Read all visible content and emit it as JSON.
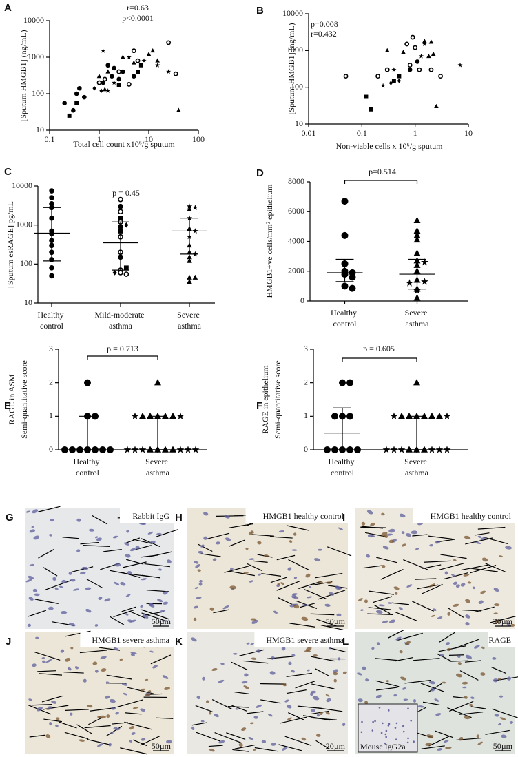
{
  "chart_data": [
    {
      "type": "scatter",
      "panel": "A",
      "xscale": "log",
      "yscale": "log",
      "xlim": [
        0.1,
        100
      ],
      "xticks": [
        0.1,
        1,
        10,
        100
      ],
      "ylim": [
        10,
        10000
      ],
      "yticks": [
        10,
        100,
        1000,
        10000
      ],
      "xlabel": "Total cell count x10⁶/g sputum",
      "ylabel": "[Sputum HMGB1] (ng/mL)",
      "annotations": [
        "r=0.63",
        "p<0.0001"
      ],
      "series": [
        {
          "marker": "circle",
          "x": [
            0.2,
            0.35,
            0.4,
            0.5,
            1.5,
            2,
            1.8,
            2.5,
            3,
            5,
            1.2,
            0.3
          ],
          "values": [
            55,
            100,
            140,
            80,
            600,
            500,
            300,
            250,
            400,
            300,
            200,
            35
          ]
        },
        {
          "marker": "square",
          "x": [
            0.25,
            0.35,
            2.5,
            7,
            6
          ],
          "values": [
            25,
            55,
            170,
            600,
            400
          ]
        },
        {
          "marker": "triangle",
          "x": [
            1,
            1.3,
            1.5,
            3,
            5,
            10,
            12,
            15,
            40
          ],
          "values": [
            300,
            130,
            400,
            1000,
            700,
            1200,
            1500,
            800,
            35
          ]
        },
        {
          "marker": "star",
          "x": [
            1.2,
            1.5,
            2,
            4,
            8,
            15,
            25
          ],
          "values": [
            1500,
            120,
            200,
            1000,
            800,
            600,
            400
          ]
        },
        {
          "marker": "open-circle",
          "x": [
            1,
            1.3,
            2.5,
            4,
            5,
            6,
            25,
            35
          ],
          "values": [
            200,
            250,
            400,
            180,
            1500,
            800,
            2500,
            350
          ]
        },
        {
          "marker": "diamond",
          "x": [
            0.8,
            1.1
          ],
          "values": [
            140,
            120
          ]
        }
      ]
    },
    {
      "type": "scatter",
      "panel": "B",
      "xscale": "log",
      "yscale": "log",
      "xlim": [
        0.01,
        10
      ],
      "xticks": [
        0.01,
        0.1,
        1,
        10
      ],
      "ylim": [
        10,
        10000
      ],
      "yticks": [
        10,
        100,
        1000,
        10000
      ],
      "xlabel": "Non-viable cells x 10⁶/g sputum",
      "ylabel": "[Sputum HMGB1] (ng/mL)",
      "annotations": [
        "p=0.008",
        "r=0.432"
      ],
      "series": [
        {
          "marker": "open-circle",
          "x": [
            0.05,
            0.2,
            0.3,
            0.7,
            0.9,
            1,
            1.2,
            0.8,
            2,
            3
          ],
          "values": [
            200,
            200,
            300,
            1500,
            2300,
            1200,
            300,
            400,
            300,
            200
          ]
        },
        {
          "marker": "triangle",
          "x": [
            0.3,
            0.6,
            1.5,
            1.8,
            2,
            2.2,
            2.5
          ],
          "values": [
            1000,
            900,
            1800,
            700,
            1700,
            800,
            30
          ]
        },
        {
          "marker": "square",
          "x": [
            0.12,
            0.15,
            0.4,
            0.5
          ],
          "values": [
            55,
            25,
            150,
            200
          ]
        },
        {
          "marker": "star",
          "x": [
            0.25,
            0.4,
            1.3,
            1.5,
            7
          ],
          "values": [
            110,
            300,
            700,
            1500,
            400
          ]
        },
        {
          "marker": "diamond",
          "x": [
            0.35,
            0.5
          ],
          "values": [
            130,
            150
          ]
        },
        {
          "marker": "circle",
          "x": [
            0.8,
            1.1
          ],
          "values": [
            300,
            500
          ]
        }
      ]
    },
    {
      "type": "strip",
      "panel": "C",
      "yscale": "log",
      "ylim": [
        10,
        10000
      ],
      "yticks": [
        10,
        100,
        1000,
        10000
      ],
      "ylabel": "[Sputum esRAGE] pg/mL",
      "annotations": [
        "p = 0.45"
      ],
      "categories": [
        "Healthy control",
        "Mild-moderate asthma",
        "Severe asthma"
      ],
      "series": [
        {
          "category_index": 0,
          "marker": "circle",
          "values": [
            7500,
            5000,
            3500,
            2800,
            1500,
            700,
            600,
            400,
            300,
            200,
            130,
            80,
            50
          ]
        },
        {
          "category_index": 1,
          "marker": "open-circle",
          "values": [
            4500,
            2200,
            1200,
            500,
            200,
            70,
            60,
            55
          ]
        },
        {
          "category_index": 1,
          "marker": "circle",
          "values": [
            3000,
            900,
            150
          ]
        },
        {
          "category_index": 1,
          "marker": "square",
          "values": [
            1500,
            700,
            80
          ]
        },
        {
          "category_index": 1,
          "marker": "diamond",
          "values": [
            1000,
            60
          ]
        },
        {
          "category_index": 2,
          "marker": "triangle",
          "values": [
            2500,
            800,
            300,
            200,
            150,
            120,
            45,
            45,
            35
          ]
        },
        {
          "category_index": 2,
          "marker": "star",
          "values": [
            3000,
            2800,
            1500,
            700,
            500,
            180
          ]
        }
      ],
      "median": [
        620,
        350,
        700
      ],
      "q1": [
        120,
        70,
        180
      ],
      "q3": [
        2800,
        1200,
        1500
      ]
    },
    {
      "type": "strip",
      "panel": "D",
      "yscale": "linear",
      "ylim": [
        0,
        8000
      ],
      "yticks": [
        0,
        2000,
        4000,
        6000,
        8000
      ],
      "ylabel": "HMGB1+ve cells/mm² epithelium",
      "annotations": [
        "p=0.514"
      ],
      "categories": [
        "Healthy control",
        "Severe asthma"
      ],
      "series": [
        {
          "category_index": 0,
          "marker": "circle",
          "values": [
            6700,
            4400,
            2500,
            2000,
            1900,
            1800,
            1600,
            1000,
            850
          ]
        },
        {
          "category_index": 1,
          "marker": "triangle",
          "values": [
            5400,
            4700,
            4400,
            4100,
            3200,
            2700,
            2400,
            2000,
            1400,
            800,
            200
          ]
        },
        {
          "category_index": 1,
          "marker": "star",
          "values": [
            2600,
            1300,
            1200,
            700
          ]
        }
      ],
      "median": [
        1900,
        1800
      ],
      "q1": [
        1300,
        800
      ],
      "q3": [
        2800,
        2800
      ]
    },
    {
      "type": "strip",
      "panel": "E",
      "yscale": "linear",
      "ylim": [
        0,
        3
      ],
      "yticks": [
        0,
        1,
        2,
        3
      ],
      "ylabel": [
        "RAGE in ASM",
        "Semi-quantitative score"
      ],
      "annotations": [
        "p = 0.713"
      ],
      "categories": [
        "Healthy control",
        "Severe asthma"
      ],
      "series": [
        {
          "category_index": 0,
          "marker": "circle",
          "values": [
            2,
            1,
            1,
            0,
            0,
            0,
            0,
            0,
            0,
            0
          ]
        },
        {
          "category_index": 1,
          "marker": "triangle",
          "values": [
            2,
            1,
            1,
            1,
            1,
            1,
            0,
            0,
            0,
            0
          ]
        },
        {
          "category_index": 1,
          "marker": "star",
          "values": [
            1,
            1,
            0,
            0,
            0,
            0,
            0,
            0
          ]
        }
      ],
      "median": [
        0,
        0
      ],
      "q1": [
        0,
        0
      ],
      "q3": [
        1,
        1
      ]
    },
    {
      "type": "strip",
      "panel": "F",
      "yscale": "linear",
      "ylim": [
        0,
        3
      ],
      "yticks": [
        0,
        1,
        2,
        3
      ],
      "ylabel": [
        "RAGE in epithelium",
        "Semi-quantitative score"
      ],
      "annotations": [
        "p = 0.605"
      ],
      "categories": [
        "Healthy control",
        "Severe asthma"
      ],
      "series": [
        {
          "category_index": 0,
          "marker": "circle",
          "values": [
            2,
            2,
            1,
            1,
            1,
            0,
            0,
            0,
            0,
            0
          ]
        },
        {
          "category_index": 1,
          "marker": "triangle",
          "values": [
            2,
            1,
            1,
            1,
            1,
            1,
            1,
            0,
            0,
            0
          ]
        },
        {
          "category_index": 1,
          "marker": "star",
          "values": [
            1,
            1,
            0,
            0,
            0,
            0,
            0,
            0
          ]
        }
      ],
      "median": [
        0.5,
        0
      ],
      "q1": [
        0,
        0
      ],
      "q3": [
        1.25,
        1
      ]
    }
  ],
  "micrographs": [
    {
      "panel": "G",
      "caption": "Rabbit IgG",
      "scale": "50µm"
    },
    {
      "panel": "H",
      "caption": "HMGB1 healthy control",
      "scale": "50µm"
    },
    {
      "panel": "I",
      "caption": "HMGB1 healthy control",
      "scale": "20µm"
    },
    {
      "panel": "J",
      "caption": "HMGB1 severe asthma",
      "scale": "50µm"
    },
    {
      "panel": "K",
      "caption": "HMGB1 severe asthma",
      "scale": "20µm"
    },
    {
      "panel": "L",
      "caption": "RAGE",
      "scale": "50µm",
      "inset": "Mouse IgG2a"
    }
  ]
}
